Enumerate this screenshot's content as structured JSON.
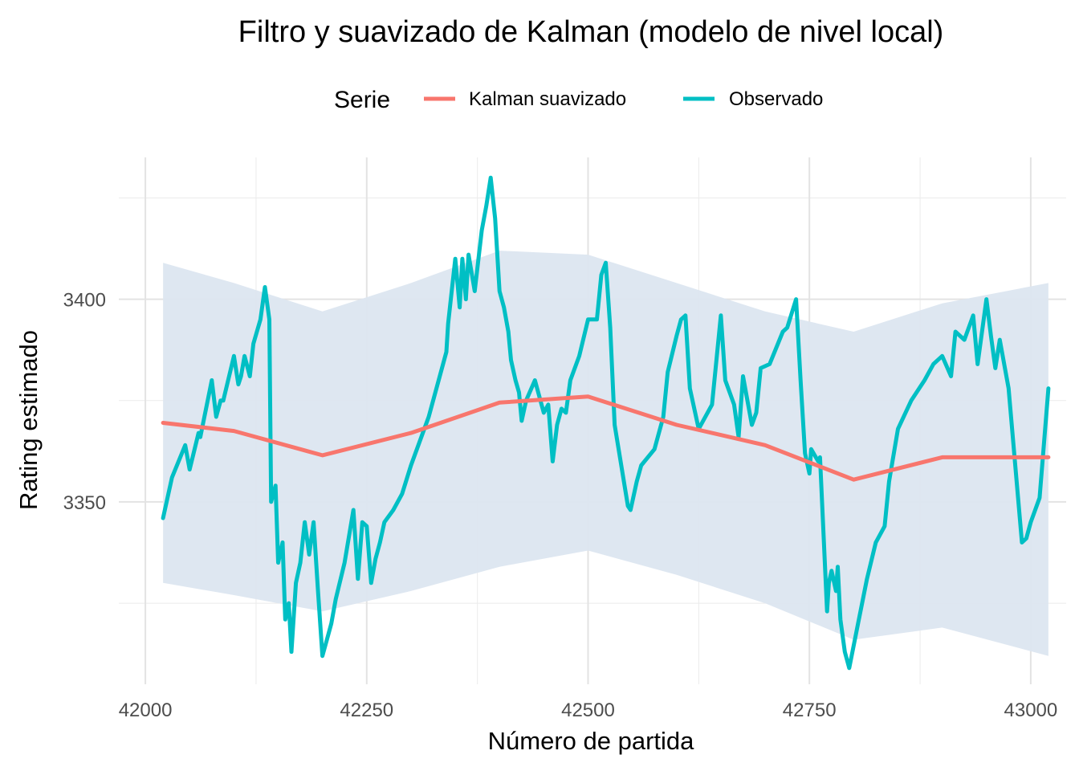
{
  "chart_data": {
    "type": "line",
    "title": "Filtro y suavizado de Kalman (modelo de nivel local)",
    "xlabel": "Número de partida",
    "ylabel": "Rating estimado",
    "xlim": [
      41970,
      43040
    ],
    "ylim": [
      3305,
      3435
    ],
    "x_ticks": [
      42000,
      42250,
      42500,
      42750,
      43000
    ],
    "x_tick_labels": [
      "42000",
      "42250",
      "42500",
      "42750",
      "43000"
    ],
    "y_ticks": [
      3350,
      3400
    ],
    "y_tick_labels": [
      "3350",
      "3400"
    ],
    "grid": true,
    "legend": {
      "title": "Serie",
      "position": "top",
      "entries": [
        {
          "label": "Kalman suavizado",
          "color": "#F8766D"
        },
        {
          "label": "Observado",
          "color": "#00BFC4"
        }
      ]
    },
    "band_color": "#DCE6F0",
    "series": [
      {
        "name": "Kalman suavizado",
        "color": "#F8766D",
        "x": [
          42020,
          42100,
          42200,
          42300,
          42400,
          42500,
          42600,
          42700,
          42800,
          42900,
          43020
        ],
        "y": [
          3369.5,
          3367.5,
          3361.5,
          3367,
          3374.5,
          3376,
          3369,
          3364,
          3355.5,
          3361,
          3361
        ]
      },
      {
        "name": "Observado",
        "color": "#00BFC4",
        "x": [
          42020,
          42030,
          42045,
          42050,
          42060,
          42062,
          42075,
          42080,
          42085,
          42088,
          42100,
          42105,
          42108,
          42112,
          42118,
          42122,
          42130,
          42135,
          42140,
          42142,
          42147,
          42150,
          42155,
          42158,
          42162,
          42165,
          42170,
          42175,
          42180,
          42185,
          42190,
          42195,
          42200,
          42205,
          42210,
          42215,
          42225,
          42235,
          42240,
          42245,
          42250,
          42255,
          42260,
          42265,
          42270,
          42280,
          42290,
          42300,
          42320,
          42340,
          42342,
          42350,
          42355,
          42358,
          42362,
          42365,
          42372,
          42380,
          42385,
          42390,
          42395,
          42400,
          42405,
          42410,
          42413,
          42418,
          42422,
          42425,
          42430,
          42440,
          42450,
          42455,
          42460,
          42465,
          42470,
          42475,
          42480,
          42490,
          42500,
          42510,
          42515,
          42520,
          42525,
          42530,
          42545,
          42548,
          42555,
          42560,
          42575,
          42585,
          42590,
          42600,
          42605,
          42610,
          42615,
          42625,
          42640,
          42650,
          42655,
          42665,
          42670,
          42675,
          42685,
          42690,
          42695,
          42705,
          42720,
          42725,
          42735,
          42740,
          42745,
          42750,
          42752,
          42760,
          42762,
          42770,
          42772,
          42775,
          42780,
          42782,
          42785,
          42790,
          42795,
          42805,
          42815,
          42825,
          42835,
          42840,
          42850,
          42865,
          42880,
          42890,
          42900,
          42910,
          42915,
          42925,
          42935,
          42940,
          42950,
          42955,
          42960,
          42965,
          42975,
          42990,
          42995,
          43000,
          43010,
          43020
        ],
        "y": [
          3346,
          3356,
          3364,
          3358,
          3367,
          3366,
          3380,
          3371,
          3375,
          3375,
          3386,
          3379,
          3381,
          3386,
          3381,
          3389,
          3395,
          3403,
          3395,
          3350,
          3354,
          3335,
          3340,
          3321,
          3325,
          3313,
          3330,
          3335,
          3345,
          3337,
          3345,
          3328,
          3312,
          3316,
          3320,
          3326,
          3335,
          3348,
          3331,
          3345,
          3344,
          3330,
          3336,
          3340,
          3345,
          3348,
          3352,
          3359,
          3371,
          3387,
          3394,
          3410,
          3398,
          3410,
          3400,
          3411,
          3402,
          3417,
          3423,
          3430,
          3420,
          3402,
          3398,
          3392,
          3385,
          3380,
          3377,
          3370,
          3375,
          3380,
          3372,
          3374,
          3360,
          3369,
          3373,
          3372,
          3380,
          3386,
          3395,
          3395,
          3406,
          3409,
          3393,
          3369,
          3349,
          3348,
          3355,
          3359,
          3363,
          3371,
          3382,
          3391,
          3395,
          3396,
          3378,
          3368,
          3374,
          3396,
          3380,
          3374,
          3366,
          3381,
          3369,
          3372,
          3383,
          3384,
          3392,
          3393,
          3400,
          3380,
          3362,
          3357,
          3363,
          3360,
          3361,
          3323,
          3330,
          3333,
          3328,
          3334,
          3321,
          3313,
          3309,
          3320,
          3331,
          3340,
          3344,
          3355,
          3368,
          3375,
          3380,
          3384,
          3386,
          3381,
          3392,
          3390,
          3396,
          3384,
          3400,
          3391,
          3383,
          3390,
          3378,
          3340,
          3341,
          3345,
          3351,
          3378
        ]
      }
    ],
    "band": {
      "x": [
        42020,
        42100,
        42200,
        42300,
        42400,
        42500,
        42600,
        42700,
        42800,
        42900,
        43020
      ],
      "upper": [
        3409,
        3404,
        3397,
        3404,
        3412,
        3411,
        3404,
        3397,
        3392,
        3399,
        3404
      ],
      "lower": [
        3330,
        3327,
        3323,
        3328,
        3334,
        3338,
        3332,
        3325,
        3316,
        3319,
        3312
      ]
    }
  }
}
